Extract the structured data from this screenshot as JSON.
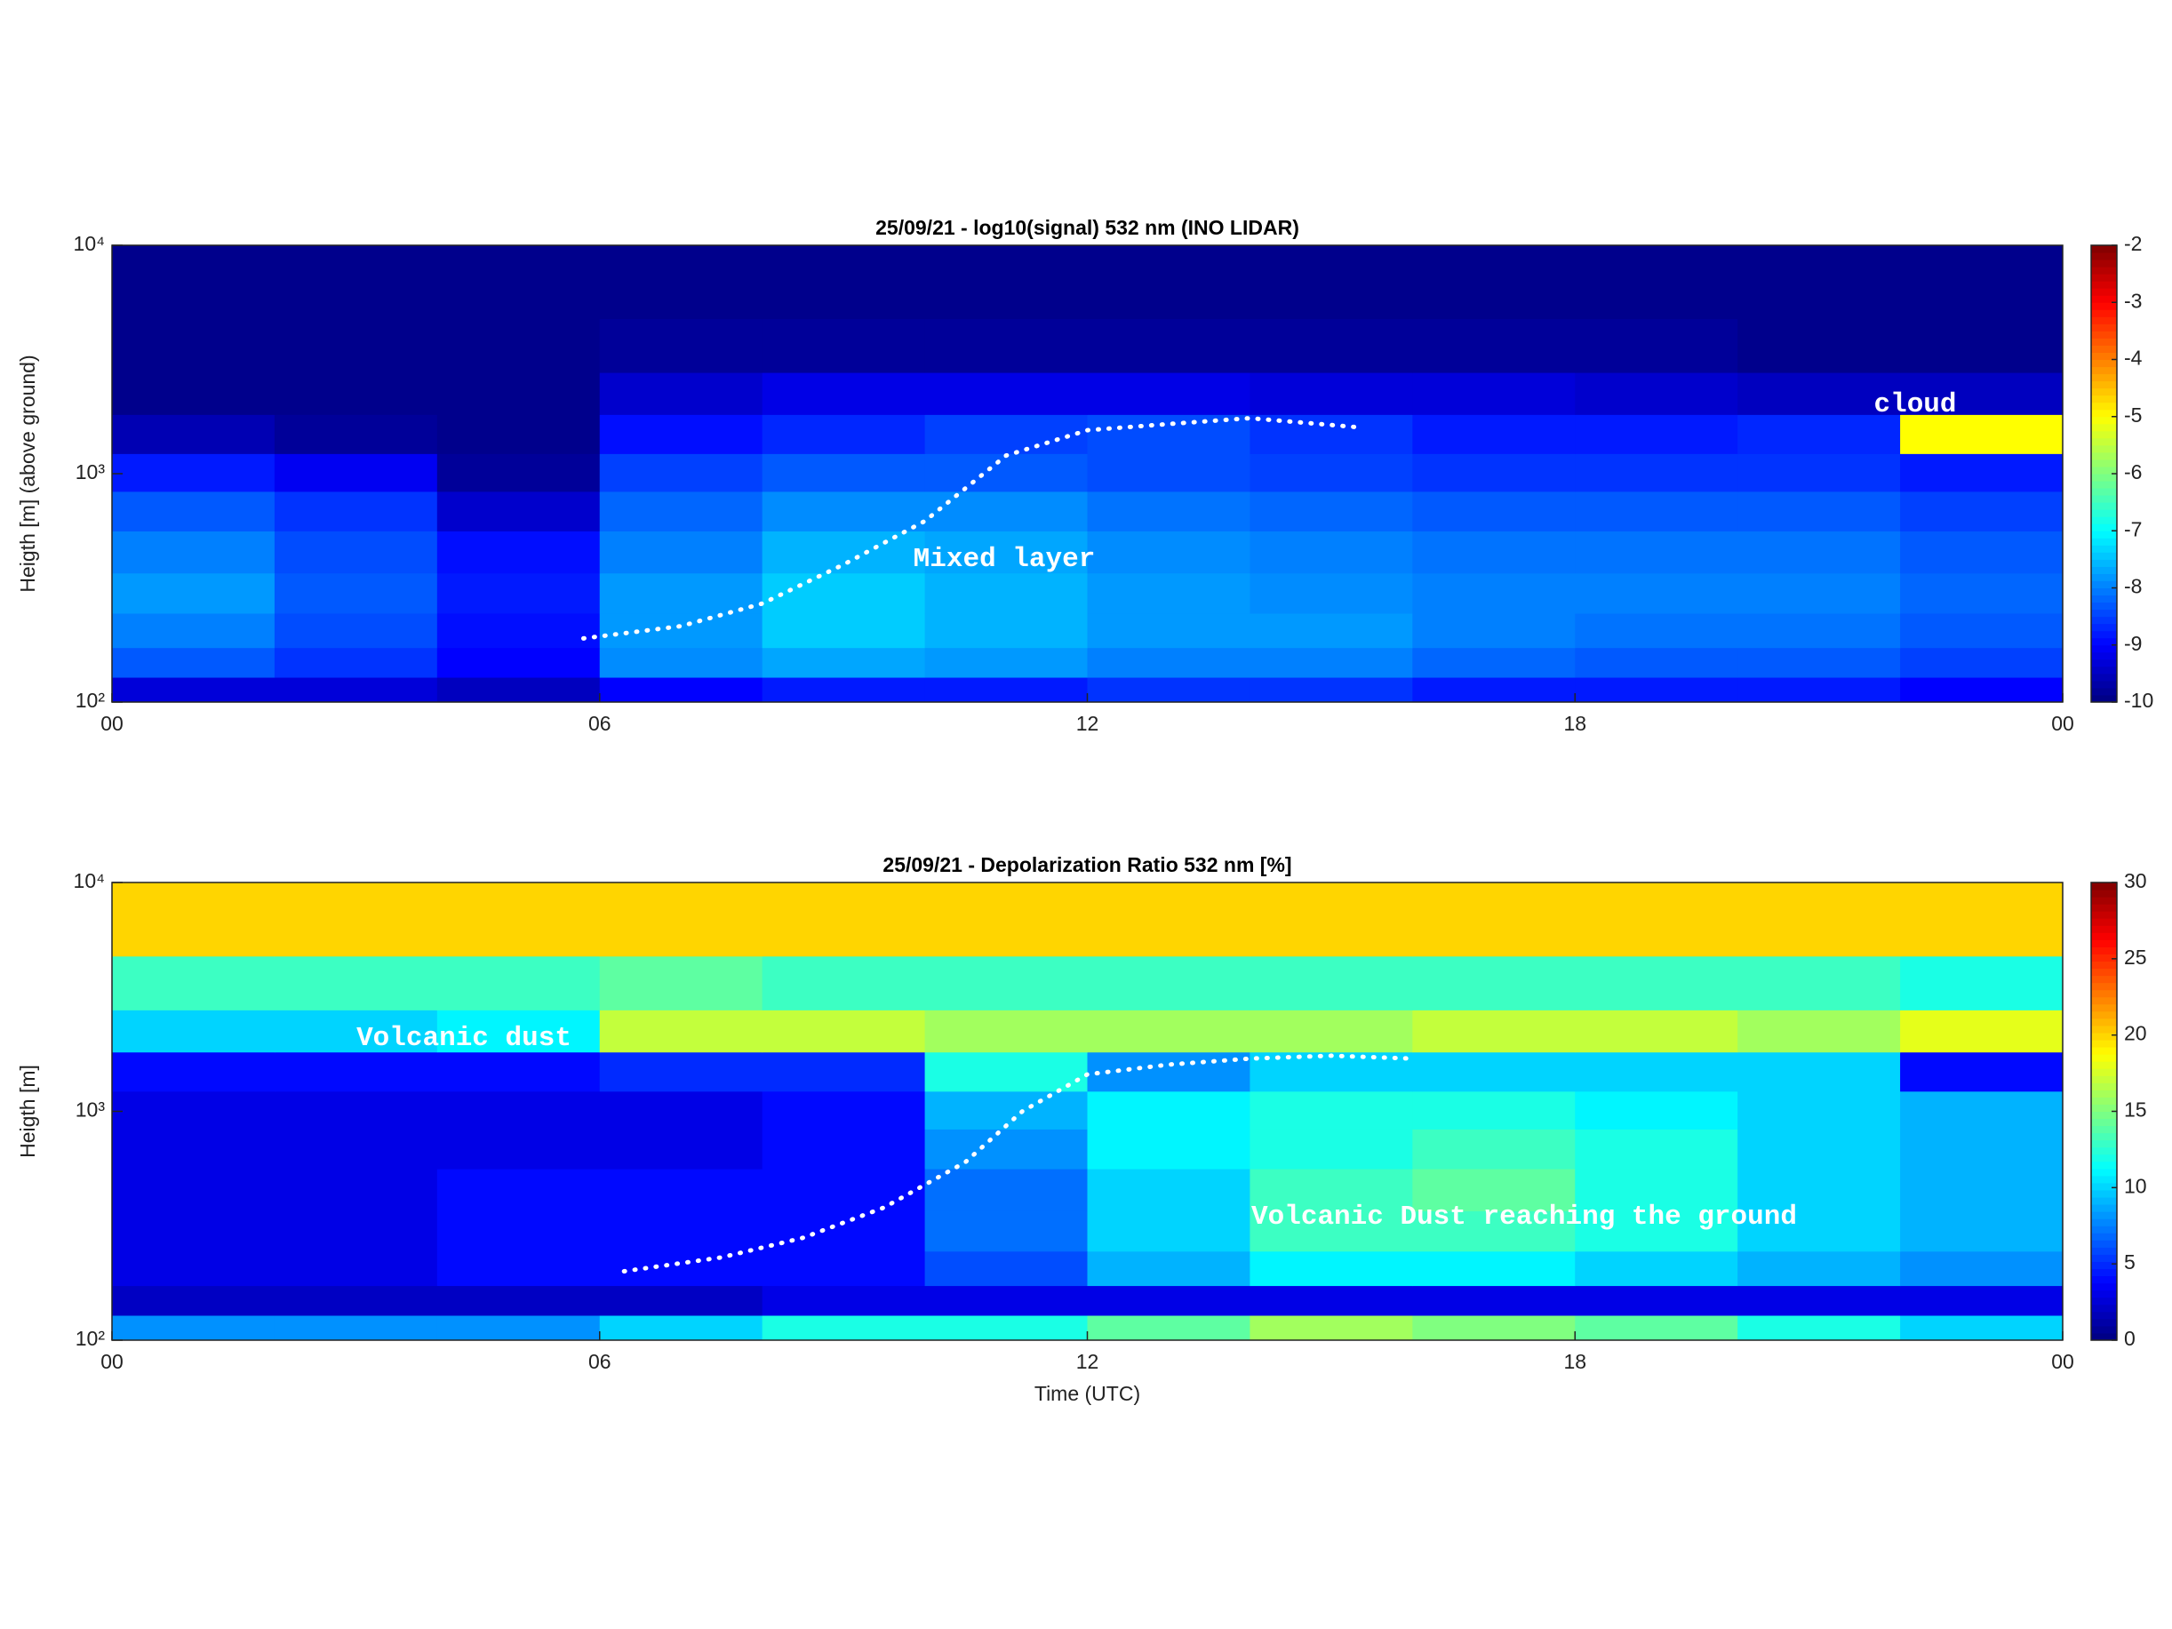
{
  "chart_data": [
    {
      "type": "heatmap",
      "title": "25/09/21  - log10(signal) 532 nm (INO LIDAR)",
      "ylabel": "Heigth [m] (above ground)",
      "x": [
        1,
        3,
        5,
        7,
        9,
        11,
        13,
        15,
        17,
        19,
        21,
        23
      ],
      "y": [
        110,
        150,
        200,
        300,
        450,
        700,
        1000,
        1500,
        2200,
        3500,
        6500
      ],
      "z": [
        [
          -9.3,
          -9.3,
          -9.5,
          -9,
          -8.8,
          -8.8,
          -8.6,
          -8.6,
          -8.8,
          -8.8,
          -8.8,
          -9
        ],
        [
          -8.3,
          -8.6,
          -9,
          -7.9,
          -7.7,
          -7.8,
          -8,
          -8,
          -8.2,
          -8.3,
          -8.3,
          -8.5
        ],
        [
          -8,
          -8.4,
          -8.9,
          -7.8,
          -7.4,
          -7.6,
          -7.8,
          -7.8,
          -8,
          -8.1,
          -8.1,
          -8.3
        ],
        [
          -7.8,
          -8.3,
          -8.8,
          -7.8,
          -7.4,
          -7.6,
          -7.8,
          -7.9,
          -8,
          -8,
          -8,
          -8.2
        ],
        [
          -8,
          -8.4,
          -8.9,
          -8,
          -7.6,
          -7.7,
          -7.9,
          -8,
          -8.1,
          -8.1,
          -8.1,
          -8.3
        ],
        [
          -8.3,
          -8.6,
          -9.4,
          -8.2,
          -7.9,
          -7.9,
          -8.1,
          -8.2,
          -8.3,
          -8.3,
          -8.3,
          -8.5
        ],
        [
          -8.8,
          -9.1,
          -9.8,
          -8.5,
          -8.3,
          -8.3,
          -8.4,
          -8.5,
          -8.6,
          -8.6,
          -8.6,
          -8.8
        ],
        [
          -9.6,
          -9.8,
          -9.9,
          -8.9,
          -8.7,
          -8.5,
          -8.4,
          -8.6,
          -8.8,
          -8.8,
          -8.7,
          -5
        ],
        [
          -9.9,
          -9.9,
          -9.9,
          -9.4,
          -9.2,
          -9.2,
          -9.2,
          -9.3,
          -9.3,
          -9.4,
          -9.5,
          -9.5
        ],
        [
          -9.9,
          -9.9,
          -9.9,
          -9.8,
          -9.8,
          -9.8,
          -9.8,
          -9.8,
          -9.8,
          -9.8,
          -9.9,
          -9.9
        ],
        [
          -9.9,
          -9.9,
          -9.9,
          -9.9,
          -9.9,
          -9.9,
          -9.9,
          -9.9,
          -9.9,
          -9.9,
          -9.9,
          -9.9
        ]
      ],
      "xlim": [
        0,
        24
      ],
      "ylim": [
        100,
        10000
      ],
      "yscale": "log",
      "xticks": [
        {
          "value": 0,
          "label": "00"
        },
        {
          "value": 6,
          "label": "06"
        },
        12,
        18,
        {
          "value": 24,
          "label": "00"
        }
      ],
      "yticks": [
        {
          "value": 100,
          "label": "10²"
        },
        {
          "value": 1000,
          "label": "10³"
        },
        {
          "value": 10000,
          "label": "10⁴"
        }
      ],
      "colormap": "jet",
      "clim": [
        -10,
        -2
      ],
      "cticks": [
        -10,
        -9,
        -8,
        -7,
        -6,
        -5,
        -4,
        -3,
        -2
      ],
      "annotations": [
        {
          "text": "Mixed layer"
        },
        {
          "text": "cloud"
        }
      ],
      "boundary": {
        "x": [
          5.8,
          7,
          8,
          9,
          10,
          11,
          12,
          13,
          14,
          15.3
        ],
        "y": [
          190,
          215,
          270,
          400,
          620,
          1200,
          1550,
          1650,
          1750,
          1600
        ],
        "color": "#ffffff"
      }
    },
    {
      "type": "heatmap",
      "title": "25/09/21  - Depolarization Ratio 532 nm [%]",
      "ylabel": "Heigth [m]",
      "xlabel": "Time (UTC)",
      "x": [
        1,
        3,
        5,
        7,
        9,
        11,
        13,
        15,
        17,
        19,
        21,
        23
      ],
      "y": [
        110,
        150,
        200,
        300,
        450,
        700,
        1000,
        1500,
        2200,
        3500,
        6500
      ],
      "z": [
        [
          8,
          8,
          8,
          10,
          12,
          12,
          14,
          16,
          15,
          14,
          12,
          10
        ],
        [
          2,
          2,
          2,
          2,
          3,
          3,
          3,
          3,
          3,
          3,
          3,
          3
        ],
        [
          3,
          3,
          4,
          4,
          4,
          6,
          9,
          11,
          11,
          10,
          9,
          8
        ],
        [
          3,
          3,
          4,
          4,
          4,
          7,
          10,
          13,
          13,
          12,
          10,
          9
        ],
        [
          3,
          3,
          4,
          4,
          4,
          7,
          10,
          13,
          14,
          12,
          10,
          9
        ],
        [
          3,
          3,
          3,
          3,
          4,
          8,
          11,
          12,
          13,
          12,
          10,
          9
        ],
        [
          3,
          3,
          3,
          3,
          4,
          9,
          11,
          12,
          12,
          11,
          10,
          9
        ],
        [
          4,
          4,
          4,
          5,
          5,
          12,
          8,
          10,
          10,
          10,
          10,
          4
        ],
        [
          10,
          10,
          11,
          17,
          17,
          16,
          16,
          16,
          17,
          17,
          16,
          18
        ],
        [
          13,
          13,
          13,
          14,
          13,
          13,
          13,
          13,
          13,
          13,
          13,
          12
        ],
        [
          20,
          20,
          20,
          20,
          20,
          20,
          20,
          20,
          20,
          20,
          20,
          20
        ]
      ],
      "xlim": [
        0,
        24
      ],
      "ylim": [
        100,
        10000
      ],
      "yscale": "log",
      "xticks": [
        {
          "value": 0,
          "label": "00"
        },
        {
          "value": 6,
          "label": "06"
        },
        12,
        18,
        {
          "value": 24,
          "label": "00"
        }
      ],
      "yticks": [
        {
          "value": 100,
          "label": "10²"
        },
        {
          "value": 1000,
          "label": "10³"
        },
        {
          "value": 10000,
          "label": "10⁴"
        }
      ],
      "colormap": "jet",
      "clim": [
        0,
        30
      ],
      "cticks": [
        0,
        5,
        10,
        15,
        20,
        25,
        30
      ],
      "annotations": [
        {
          "text": "Volcanic dust"
        },
        {
          "text": "Volcanic Dust reaching the ground"
        }
      ],
      "boundary": {
        "x": [
          6.3,
          7.5,
          8.5,
          9.5,
          10.5,
          11.2,
          12,
          13,
          14,
          15,
          16
        ],
        "y": [
          200,
          230,
          280,
          380,
          600,
          1000,
          1450,
          1600,
          1700,
          1750,
          1700
        ],
        "color": "#ffffff"
      }
    }
  ]
}
